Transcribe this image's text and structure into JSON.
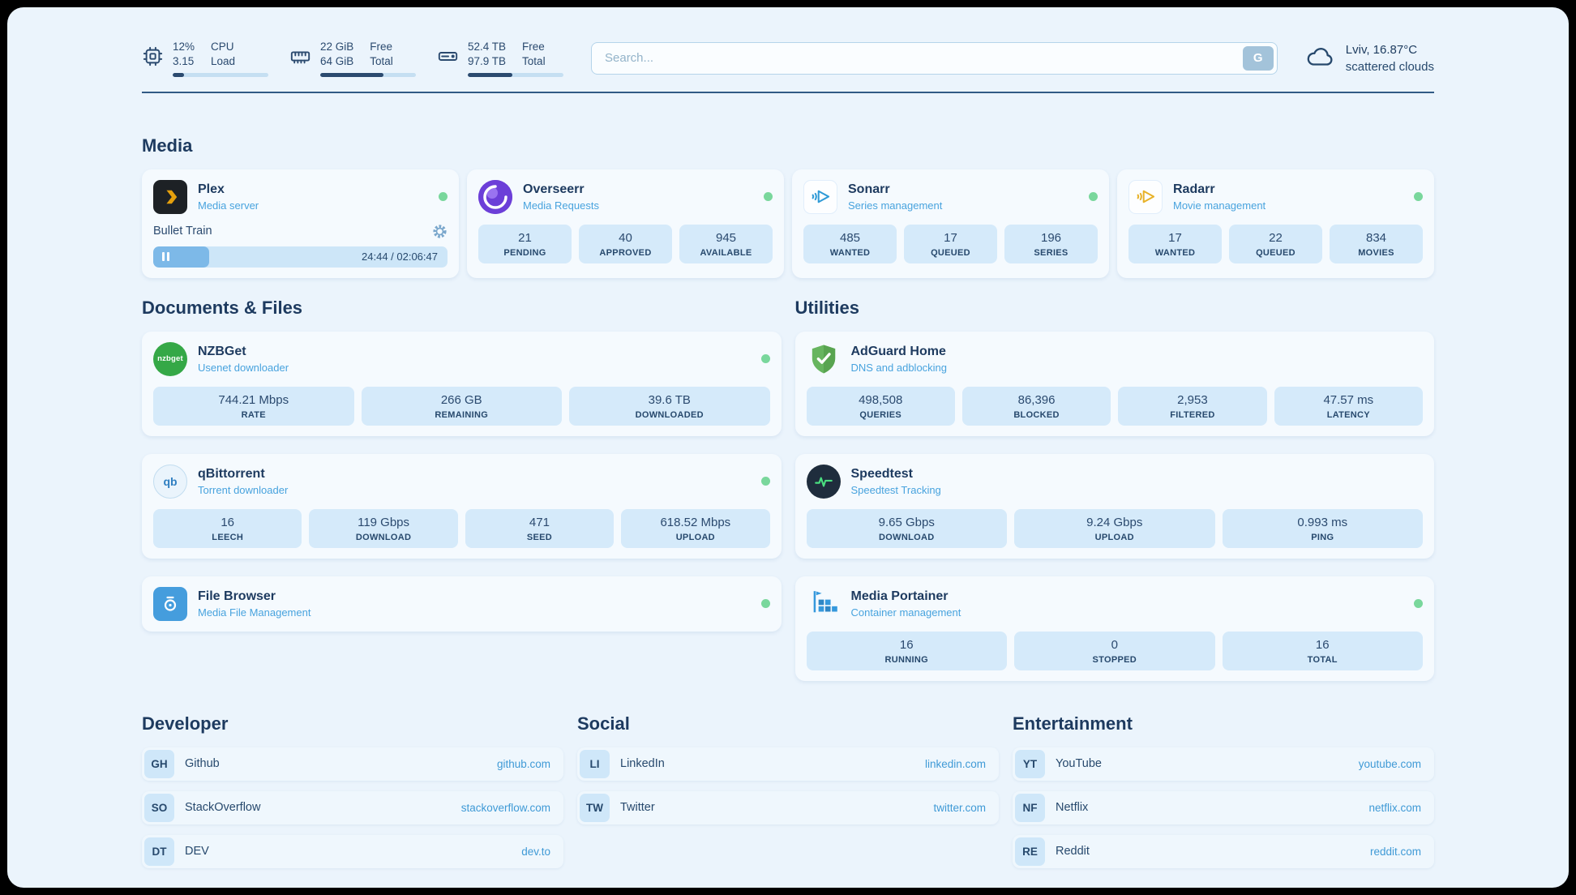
{
  "topbar": {
    "cpu": {
      "value1": "12%",
      "value2": "3.15",
      "label1": "CPU",
      "label2": "Load",
      "bar": 12
    },
    "ram": {
      "value1": "22 GiB",
      "value2": "64 GiB",
      "label1": "Free",
      "label2": "Total",
      "bar": 66
    },
    "disk": {
      "value1": "52.4 TB",
      "value2": "97.9 TB",
      "label1": "Free",
      "label2": "Total",
      "bar": 47
    },
    "search": {
      "placeholder": "Search...",
      "button_label": "G"
    },
    "weather": {
      "location": "Lviv, 16.87°C",
      "condition": "scattered clouds"
    }
  },
  "sections": {
    "media": {
      "title": "Media"
    },
    "documents": {
      "title": "Documents & Files"
    },
    "utilities": {
      "title": "Utilities"
    },
    "developer": {
      "title": "Developer"
    },
    "social": {
      "title": "Social"
    },
    "entertainment": {
      "title": "Entertainment"
    }
  },
  "services": {
    "plex": {
      "name": "Plex",
      "subtitle": "Media server",
      "now_playing": "Bullet Train",
      "time": "24:44 / 02:06:47",
      "progress": 19
    },
    "overseerr": {
      "name": "Overseerr",
      "subtitle": "Media Requests",
      "stats": [
        {
          "value": "21",
          "label": "PENDING"
        },
        {
          "value": "40",
          "label": "APPROVED"
        },
        {
          "value": "945",
          "label": "AVAILABLE"
        }
      ]
    },
    "sonarr": {
      "name": "Sonarr",
      "subtitle": "Series management",
      "stats": [
        {
          "value": "485",
          "label": "WANTED"
        },
        {
          "value": "17",
          "label": "QUEUED"
        },
        {
          "value": "196",
          "label": "SERIES"
        }
      ]
    },
    "radarr": {
      "name": "Radarr",
      "subtitle": "Movie management",
      "stats": [
        {
          "value": "17",
          "label": "WANTED"
        },
        {
          "value": "22",
          "label": "QUEUED"
        },
        {
          "value": "834",
          "label": "MOVIES"
        }
      ]
    },
    "nzbget": {
      "name": "NZBGet",
      "subtitle": "Usenet downloader",
      "stats": [
        {
          "value": "744.21 Mbps",
          "label": "RATE"
        },
        {
          "value": "266 GB",
          "label": "REMAINING"
        },
        {
          "value": "39.6 TB",
          "label": "DOWNLOADED"
        }
      ]
    },
    "qbittorrent": {
      "name": "qBittorrent",
      "subtitle": "Torrent downloader",
      "stats": [
        {
          "value": "16",
          "label": "LEECH"
        },
        {
          "value": "119 Gbps",
          "label": "DOWNLOAD"
        },
        {
          "value": "471",
          "label": "SEED"
        },
        {
          "value": "618.52 Mbps",
          "label": "UPLOAD"
        }
      ]
    },
    "filebrowser": {
      "name": "File Browser",
      "subtitle": "Media File Management"
    },
    "adguard": {
      "name": "AdGuard Home",
      "subtitle": "DNS and adblocking",
      "stats": [
        {
          "value": "498,508",
          "label": "QUERIES"
        },
        {
          "value": "86,396",
          "label": "BLOCKED"
        },
        {
          "value": "2,953",
          "label": "FILTERED"
        },
        {
          "value": "47.57 ms",
          "label": "LATENCY"
        }
      ]
    },
    "speedtest": {
      "name": "Speedtest",
      "subtitle": "Speedtest Tracking",
      "stats": [
        {
          "value": "9.65 Gbps",
          "label": "DOWNLOAD"
        },
        {
          "value": "9.24 Gbps",
          "label": "UPLOAD"
        },
        {
          "value": "0.993 ms",
          "label": "PING"
        }
      ]
    },
    "portainer": {
      "name": "Media Portainer",
      "subtitle": "Container management",
      "stats": [
        {
          "value": "16",
          "label": "RUNNING"
        },
        {
          "value": "0",
          "label": "STOPPED"
        },
        {
          "value": "16",
          "label": "TOTAL"
        }
      ]
    }
  },
  "bookmarks": {
    "developer": [
      {
        "abbr": "GH",
        "name": "Github",
        "url": "github.com"
      },
      {
        "abbr": "SO",
        "name": "StackOverflow",
        "url": "stackoverflow.com"
      },
      {
        "abbr": "DT",
        "name": "DEV",
        "url": "dev.to"
      }
    ],
    "social": [
      {
        "abbr": "LI",
        "name": "LinkedIn",
        "url": "linkedin.com"
      },
      {
        "abbr": "TW",
        "name": "Twitter",
        "url": "twitter.com"
      }
    ],
    "entertainment": [
      {
        "abbr": "YT",
        "name": "YouTube",
        "url": "youtube.com"
      },
      {
        "abbr": "NF",
        "name": "Netflix",
        "url": "netflix.com"
      },
      {
        "abbr": "RE",
        "name": "Reddit",
        "url": "reddit.com"
      }
    ]
  },
  "colors": {
    "page_bg": "#ebf4fc",
    "card_bg": "#f5fafe",
    "chip_bg": "#d5eafa",
    "navy_text": "#27496d",
    "heading": "#1d3a5f",
    "subtitle_blue": "#48a3de",
    "link_blue": "#3f9ad6",
    "status_green": "#79d79c",
    "bar_fill": "#2b4a6f",
    "plex_orange": "#e5a00d",
    "overseerr_purple": "#6c3fd8",
    "adguard_green": "#67b55f"
  }
}
